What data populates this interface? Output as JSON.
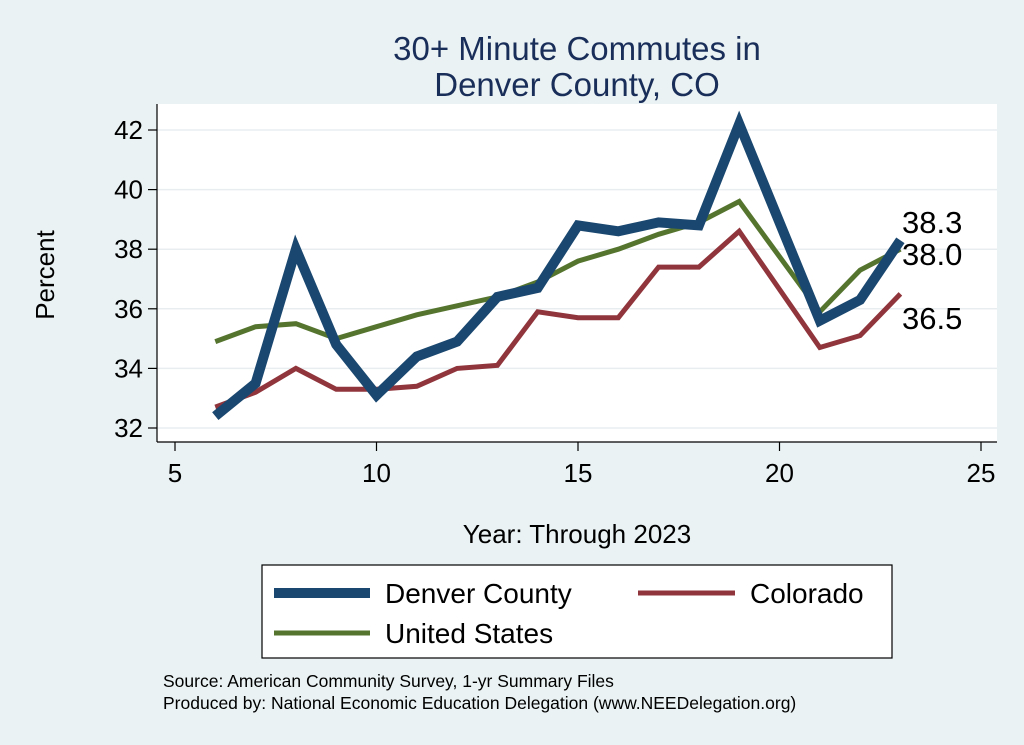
{
  "chart_data": {
    "type": "line",
    "title": [
      "30+ Minute Commutes in",
      "Denver County, CO"
    ],
    "xlabel": "Year: Through 2023",
    "ylabel": "Percent",
    "xlim": [
      5,
      25
    ],
    "ylim": [
      31.8,
      42.6
    ],
    "xticks": [
      5,
      10,
      15,
      20,
      25
    ],
    "yticks": [
      32,
      34,
      36,
      38,
      40,
      42
    ],
    "grid": "horizontal",
    "legend_position": "bottom",
    "series": [
      {
        "name": "Denver County",
        "color": "#1a476f",
        "x": [
          6,
          7,
          8,
          9,
          10,
          11,
          12,
          13,
          14,
          15,
          16,
          17,
          18,
          19,
          21,
          22,
          23
        ],
        "values": [
          32.4,
          33.5,
          38.0,
          34.8,
          33.1,
          34.4,
          34.9,
          36.4,
          36.7,
          38.8,
          38.6,
          38.9,
          38.8,
          42.2,
          35.6,
          36.3,
          38.3
        ],
        "end_label": "38.3"
      },
      {
        "name": "Colorado",
        "color": "#90353b",
        "x": [
          6,
          7,
          8,
          9,
          10,
          11,
          12,
          13,
          14,
          15,
          16,
          17,
          18,
          19,
          21,
          22,
          23
        ],
        "values": [
          32.7,
          33.2,
          34.0,
          33.3,
          33.3,
          33.4,
          34.0,
          34.1,
          35.9,
          35.7,
          35.7,
          37.4,
          37.4,
          38.6,
          34.7,
          35.1,
          36.5
        ],
        "end_label": "36.5"
      },
      {
        "name": "United States",
        "color": "#55752f",
        "x": [
          6,
          7,
          8,
          9,
          10,
          11,
          12,
          13,
          14,
          15,
          16,
          17,
          18,
          19,
          21,
          22,
          23
        ],
        "values": [
          34.9,
          35.4,
          35.5,
          35.0,
          35.4,
          35.8,
          36.1,
          36.4,
          36.9,
          37.6,
          38.0,
          38.5,
          38.9,
          39.6,
          35.9,
          37.3,
          38.0
        ],
        "end_label": "38.0"
      }
    ],
    "notes": [
      "Source: American Community Survey, 1-yr Summary Files",
      "Produced by: National Economic Education Delegation (www.NEEDelegation.org)"
    ]
  }
}
